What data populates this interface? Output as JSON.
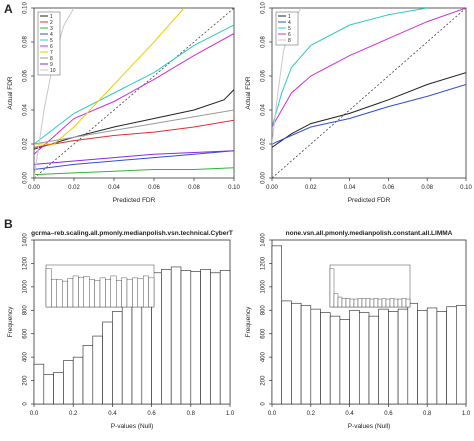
{
  "panel_labels": {
    "a": "A",
    "b": "B"
  },
  "chart_data": [
    {
      "type": "line",
      "panel": "A",
      "xlabel": "Predicted FDR",
      "ylabel": "Actual FDR",
      "xlim": [
        0,
        0.1
      ],
      "ylim": [
        0,
        0.1
      ],
      "x_ticks": [
        "0.00",
        "0.02",
        "0.04",
        "0.06",
        "0.08",
        "0.10"
      ],
      "y_ticks": [
        "0.00",
        "0.02",
        "0.04",
        "0.06",
        "0.08",
        "0.10"
      ],
      "legend_position": "top-left",
      "diagonal": true,
      "series": [
        {
          "name": "1",
          "color": "#222222",
          "x": [
            0,
            0.02,
            0.04,
            0.06,
            0.08,
            0.095,
            0.1
          ],
          "y": [
            0.017,
            0.024,
            0.03,
            0.035,
            0.04,
            0.046,
            0.052
          ]
        },
        {
          "name": "2",
          "color": "#e03030",
          "x": [
            0,
            0.02,
            0.04,
            0.06,
            0.08,
            0.1
          ],
          "y": [
            0.018,
            0.022,
            0.025,
            0.027,
            0.03,
            0.034
          ]
        },
        {
          "name": "3",
          "color": "#2eb82e",
          "x": [
            0,
            0.02,
            0.04,
            0.06,
            0.08,
            0.1
          ],
          "y": [
            0.002,
            0.003,
            0.004,
            0.005,
            0.005,
            0.006
          ]
        },
        {
          "name": "4",
          "color": "#3050d0",
          "x": [
            0,
            0.02,
            0.04,
            0.06,
            0.08,
            0.1
          ],
          "y": [
            0.005,
            0.008,
            0.01,
            0.012,
            0.014,
            0.016
          ]
        },
        {
          "name": "5",
          "color": "#30c8c8",
          "x": [
            0,
            0.02,
            0.04,
            0.06,
            0.08,
            0.1
          ],
          "y": [
            0.02,
            0.038,
            0.05,
            0.062,
            0.078,
            0.09
          ]
        },
        {
          "name": "6",
          "color": "#d030d0",
          "x": [
            0,
            0.02,
            0.04,
            0.06,
            0.08,
            0.1
          ],
          "y": [
            0.014,
            0.035,
            0.045,
            0.058,
            0.072,
            0.085
          ]
        },
        {
          "name": "7",
          "color": "#e6d200",
          "x": [
            0,
            0.01,
            0.02,
            0.04,
            0.06,
            0.075
          ],
          "y": [
            0.02,
            0.02,
            0.03,
            0.055,
            0.08,
            0.1
          ]
        },
        {
          "name": "8",
          "color": "#9a9a9a",
          "x": [
            0,
            0.02,
            0.04,
            0.06,
            0.08,
            0.1
          ],
          "y": [
            0.02,
            0.024,
            0.028,
            0.032,
            0.036,
            0.04
          ]
        },
        {
          "name": "9",
          "color": "#8a2be2",
          "x": [
            0,
            0.02,
            0.04,
            0.06,
            0.08,
            0.1
          ],
          "y": [
            0.008,
            0.01,
            0.012,
            0.014,
            0.015,
            0.016
          ]
        },
        {
          "name": "10",
          "color": "#c8c8c8",
          "x": [
            0,
            0.005,
            0.01,
            0.015,
            0.02
          ],
          "y": [
            0,
            0.04,
            0.07,
            0.09,
            0.1
          ]
        }
      ]
    },
    {
      "type": "line",
      "panel": "A",
      "xlabel": "Predicted FDR",
      "ylabel": "Actual FDR",
      "xlim": [
        0,
        0.1
      ],
      "ylim": [
        0,
        0.1
      ],
      "x_ticks": [
        "0.00",
        "0.02",
        "0.04",
        "0.06",
        "0.08",
        "0.10"
      ],
      "y_ticks": [
        "0.00",
        "0.02",
        "0.04",
        "0.06",
        "0.08",
        "0.10"
      ],
      "legend_position": "top-left",
      "diagonal": true,
      "series": [
        {
          "name": "1",
          "color": "#222222",
          "x": [
            0,
            0.01,
            0.02,
            0.04,
            0.06,
            0.08,
            0.1
          ],
          "y": [
            0.018,
            0.026,
            0.032,
            0.038,
            0.046,
            0.055,
            0.062
          ]
        },
        {
          "name": "4",
          "color": "#3050d0",
          "x": [
            0,
            0.01,
            0.02,
            0.04,
            0.06,
            0.08,
            0.1
          ],
          "y": [
            0.02,
            0.025,
            0.03,
            0.035,
            0.042,
            0.048,
            0.055
          ]
        },
        {
          "name": "5",
          "color": "#30c8c8",
          "x": [
            0,
            0.005,
            0.01,
            0.02,
            0.04,
            0.06,
            0.08
          ],
          "y": [
            0.03,
            0.05,
            0.065,
            0.078,
            0.09,
            0.096,
            0.1
          ]
        },
        {
          "name": "6",
          "color": "#d030d0",
          "x": [
            0,
            0.01,
            0.02,
            0.04,
            0.06,
            0.08,
            0.1
          ],
          "y": [
            0.03,
            0.05,
            0.06,
            0.072,
            0.082,
            0.092,
            0.1
          ]
        },
        {
          "name": "8",
          "color": "#c8c8c8",
          "x": [
            0,
            0.003,
            0.006,
            0.01,
            0.015
          ],
          "y": [
            0.02,
            0.05,
            0.075,
            0.09,
            0.1
          ]
        }
      ]
    },
    {
      "type": "bar",
      "panel": "B",
      "title": "gcrma–reb.scaling.all.pmonly.medianpolish.vsn.technical.CyberT",
      "xlabel": "P-values (Null)",
      "ylabel": "Frequency",
      "xlim": [
        0,
        1
      ],
      "ylim": [
        0,
        1400
      ],
      "x_ticks": [
        "0.0",
        "0.2",
        "0.4",
        "0.6",
        "0.8",
        "1.0"
      ],
      "y_ticks": [
        "0",
        "200",
        "400",
        "600",
        "800",
        "1000",
        "1200",
        "1400"
      ],
      "bin_width": 0.05,
      "values": [
        340,
        250,
        270,
        370,
        400,
        500,
        580,
        700,
        790,
        890,
        970,
        1070,
        1120,
        1150,
        1170,
        1140,
        1130,
        1150,
        1120,
        1140
      ],
      "inset": {
        "type": "bar",
        "xlim": [
          0,
          0.1
        ],
        "values": [
          118,
          86,
          84,
          80,
          88,
          96,
          92,
          95,
          86,
          82,
          90,
          86,
          96,
          82,
          90,
          86,
          90,
          88,
          96,
          90
        ]
      }
    },
    {
      "type": "bar",
      "panel": "B",
      "title": "none.vsn.all.pmonly.medianpolish.constant.all.LIMMA",
      "xlabel": "P-values (Null)",
      "ylabel": "Frequency",
      "xlim": [
        0,
        1
      ],
      "ylim": [
        0,
        1400
      ],
      "x_ticks": [
        "0.0",
        "0.2",
        "0.4",
        "0.6",
        "0.8",
        "1.0"
      ],
      "y_ticks": [
        "0",
        "200",
        "400",
        "600",
        "800",
        "1000",
        "1200",
        "1400"
      ],
      "bin_width": 0.05,
      "values": [
        1350,
        880,
        860,
        840,
        810,
        780,
        750,
        720,
        800,
        780,
        750,
        810,
        790,
        810,
        860,
        800,
        820,
        790,
        830,
        840
      ],
      "inset": {
        "type": "bar",
        "xlim": [
          0,
          0.1
        ],
        "values": [
          115,
          40,
          30,
          26,
          26,
          24,
          24,
          26,
          25,
          26,
          24,
          26,
          24,
          25,
          24,
          26,
          24,
          24,
          26,
          24
        ]
      }
    }
  ]
}
